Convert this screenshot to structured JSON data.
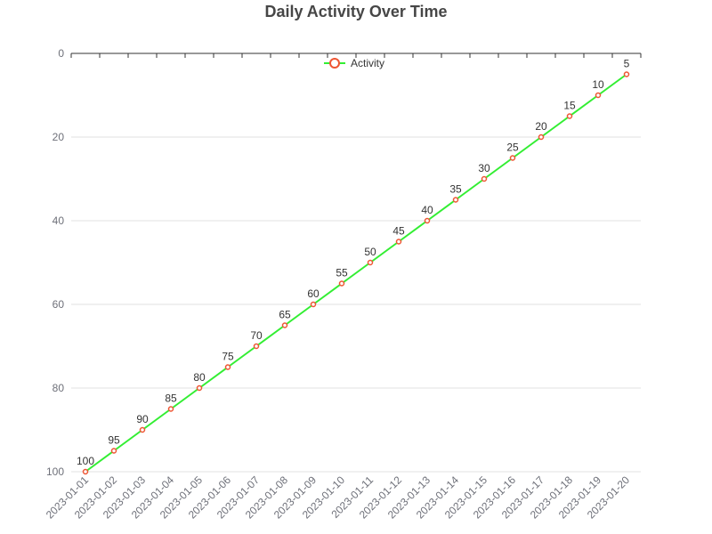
{
  "chart_data": {
    "type": "line",
    "title": "Daily Activity Over Time",
    "xlabel": "",
    "ylabel": "",
    "categories": [
      "2023-01-01",
      "2023-01-02",
      "2023-01-03",
      "2023-01-04",
      "2023-01-05",
      "2023-01-06",
      "2023-01-07",
      "2023-01-08",
      "2023-01-09",
      "2023-01-10",
      "2023-01-11",
      "2023-01-12",
      "2023-01-13",
      "2023-01-14",
      "2023-01-15",
      "2023-01-16",
      "2023-01-17",
      "2023-01-18",
      "2023-01-19",
      "2023-01-20"
    ],
    "series": [
      {
        "name": "Activity",
        "values": [
          100,
          95,
          90,
          85,
          80,
          75,
          70,
          65,
          60,
          55,
          50,
          45,
          40,
          35,
          30,
          25,
          20,
          15,
          10,
          5
        ]
      }
    ],
    "ylim": [
      0,
      100
    ],
    "y_inverted": true,
    "yticks": [
      0,
      20,
      40,
      60,
      80,
      100
    ],
    "grid": true,
    "legend": "top-center",
    "data_labels": true,
    "colors": {
      "line": "#33ee33",
      "marker_stroke": "#ee5533",
      "marker_fill": "#ffffff",
      "grid": "#e0e0e0",
      "axis": "#333333"
    }
  }
}
